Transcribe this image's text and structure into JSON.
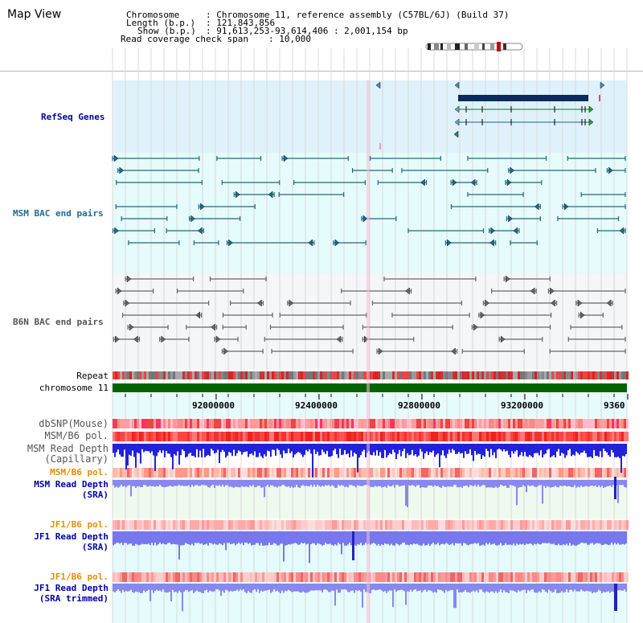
{
  "title": "Map View",
  "header": {
    "chromosome_key": "Chromosome",
    "chromosome_val": ": Chromosome 11, reference assembly (C57BL/6J) (Build 37)",
    "length_key": "Length (b.p.)",
    "length_val": ": 121,843,856",
    "show_key": "Show (b.p.)",
    "show_val": ": 91,613,253-93,614,406 : 2,001,154 bp",
    "coverage_key": "Read coverage check span",
    "coverage_val": ": 10,000"
  },
  "tracks": {
    "refseq": "RefSeq Genes",
    "msm_bac": "MSM BAC end pairs",
    "b6n_bac": "B6N BAC end pairs",
    "repeat": "Repeat",
    "chromosome": "chromosome 11",
    "dbsnp": "dbSNP(Mouse)",
    "msm_b6_pol_1": "MSM/B6 pol.",
    "msm_read_depth_cap_1": "MSM Read Depth",
    "msm_read_depth_cap_2": "(Capillary)",
    "msm_b6_pol_2": "MSM/B6 pol.",
    "msm_read_depth_sra_1": "MSM Read Depth",
    "msm_read_depth_sra_2": "(SRA)",
    "jf1_b6_pol_1": "JF1/B6 pol.",
    "jf1_read_depth_sra_1": "JF1 Read Depth",
    "jf1_read_depth_sra_2": "(SRA)",
    "jf1_b6_pol_2": "JF1/B6 pol.",
    "jf1_read_depth_trim_1": "JF1 Read Depth",
    "jf1_read_depth_trim_2": "(SRA trimmed)"
  },
  "axis": {
    "ticks": [
      "92000000",
      "92400000",
      "92800000",
      "93200000",
      "9360"
    ]
  },
  "colors": {
    "refseq_bg": "#dff2fb",
    "msm_bac_bg": "#e6fbfb",
    "b6n_bac_bg": "#f5f6f7",
    "chromosome_bar": "#006400",
    "label_blue": "#0000aa",
    "label_orange": "#e09000",
    "gene_dark": "#0b2a5e",
    "msm_feature": "#1c6b80",
    "b6n_feature": "#666666"
  }
}
